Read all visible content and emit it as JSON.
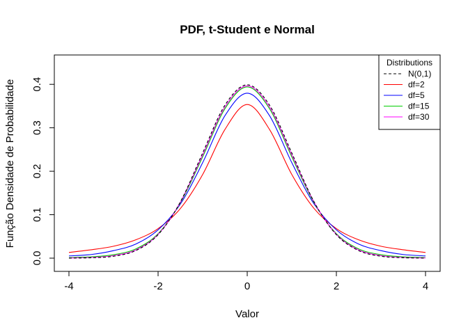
{
  "chart_data": {
    "type": "line",
    "title": "PDF, t-Student e Normal",
    "xlabel": "Valor",
    "ylabel": "Função Densidade de Probabilidade",
    "xlim": [
      -4,
      4
    ],
    "ylim": [
      0,
      0.46
    ],
    "x_ticks": [
      "-4",
      "-2",
      "0",
      "2",
      "4"
    ],
    "y_ticks": [
      "0.0",
      "0.1",
      "0.2",
      "0.3",
      "0.4"
    ],
    "grid": false,
    "legend": {
      "title": "Distributions",
      "position": "top-right",
      "entries": [
        "N(0,1)",
        "df=2",
        "df=5",
        "df=15",
        "df=30"
      ]
    },
    "x": [
      -4,
      -3.5,
      -3,
      -2.5,
      -2,
      -1.5,
      -1,
      -0.5,
      0,
      0.5,
      1,
      1.5,
      2,
      2.5,
      3,
      3.5,
      4
    ],
    "series": [
      {
        "name": "N(0,1)",
        "color": "#000000",
        "dash": true,
        "values": [
          0.0001,
          0.0009,
          0.0044,
          0.0175,
          0.054,
          0.1295,
          0.242,
          0.3521,
          0.3989,
          0.3521,
          0.242,
          0.1295,
          0.054,
          0.0175,
          0.0044,
          0.0009,
          0.0001
        ]
      },
      {
        "name": "df=2",
        "color": "#ff0000",
        "dash": false,
        "values": [
          0.0131,
          0.0193,
          0.0274,
          0.0422,
          0.068,
          0.1142,
          0.1925,
          0.2962,
          0.3536,
          0.2962,
          0.1925,
          0.1142,
          0.068,
          0.0422,
          0.0274,
          0.0193,
          0.0131
        ]
      },
      {
        "name": "df=5",
        "color": "#0000ff",
        "dash": false,
        "values": [
          0.0051,
          0.0084,
          0.0173,
          0.0325,
          0.0651,
          0.1245,
          0.2197,
          0.3279,
          0.3796,
          0.3279,
          0.2197,
          0.1245,
          0.0651,
          0.0325,
          0.0173,
          0.0084,
          0.0051
        ]
      },
      {
        "name": "df=15",
        "color": "#00cc00",
        "dash": false,
        "values": [
          0.0012,
          0.0031,
          0.0079,
          0.0213,
          0.0563,
          0.1273,
          0.2332,
          0.3439,
          0.394,
          0.3439,
          0.2332,
          0.1273,
          0.0563,
          0.0213,
          0.0079,
          0.0031,
          0.0012
        ]
      },
      {
        "name": "df=30",
        "color": "#ff00ff",
        "dash": false,
        "values": [
          0.0004,
          0.0016,
          0.0058,
          0.0189,
          0.0548,
          0.1288,
          0.2376,
          0.3479,
          0.3965,
          0.3479,
          0.2376,
          0.1288,
          0.0548,
          0.0189,
          0.0058,
          0.0016,
          0.0004
        ]
      }
    ]
  }
}
